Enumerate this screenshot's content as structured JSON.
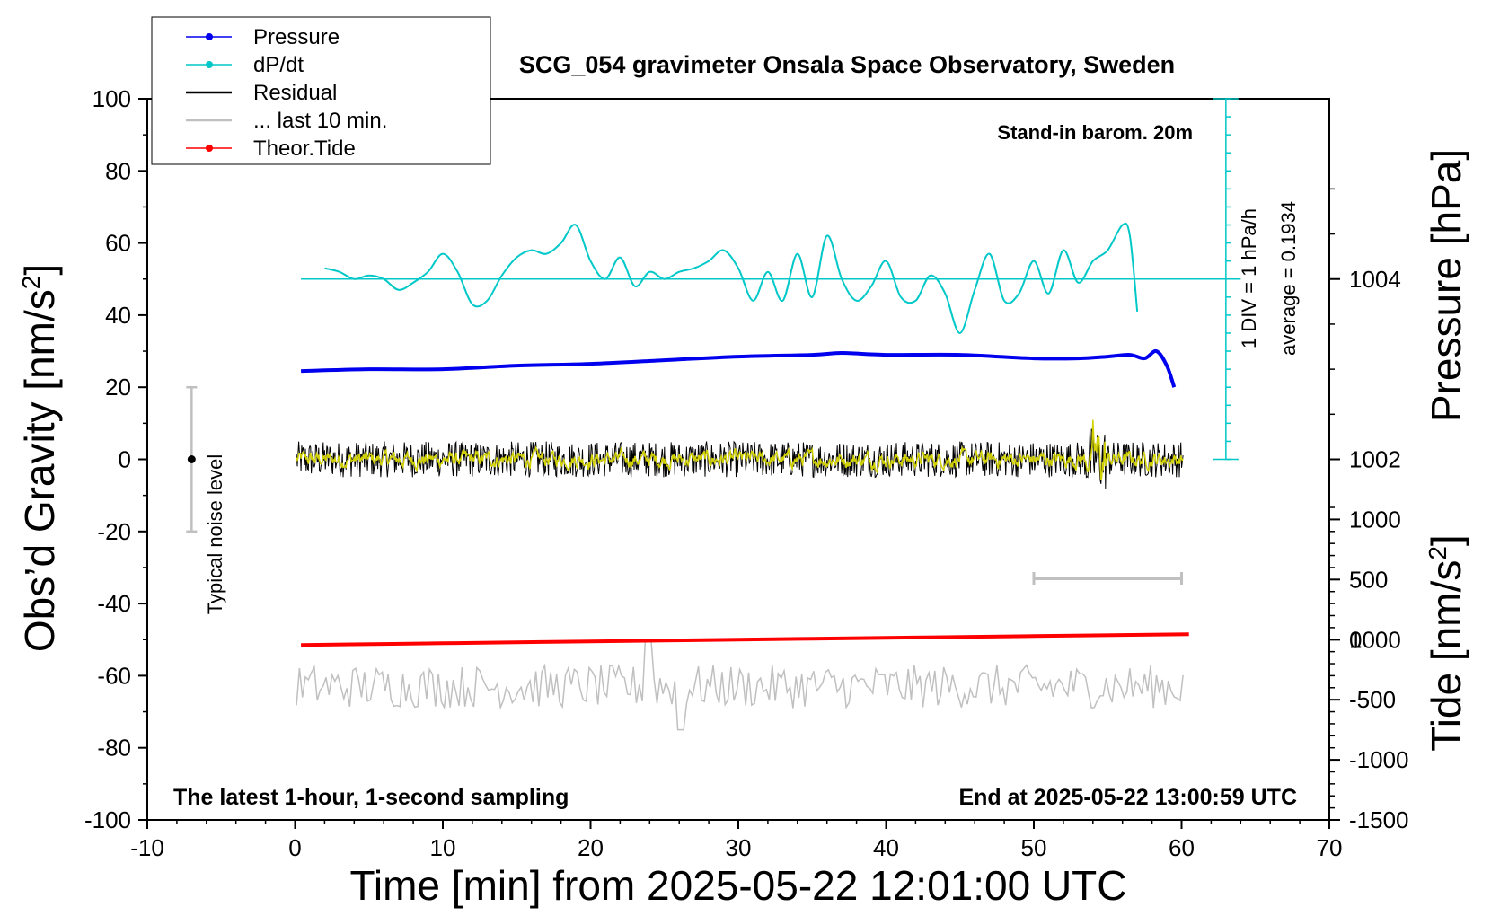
{
  "chart_data": {
    "type": "line",
    "title": "SCG_054 gravimeter Onsala Space Observatory, Sweden",
    "xlabel": "Time [min] from 2025-05-22 12:01:00 UTC",
    "ylabel_prefix": "Obs’d Gravity [nm/s",
    "ylabel_sup": "2",
    "ylabel_suffix": "]",
    "y2label": "Pressure [hPa]",
    "y3label_prefix": "Tide [nm/s",
    "y3label_sup": "2",
    "y3label_suffix": "]",
    "xlim": [
      -10,
      70
    ],
    "ylim": [
      -100,
      100
    ],
    "xticks": [
      -10,
      0,
      10,
      20,
      30,
      40,
      50,
      60,
      70
    ],
    "yticks": [
      -100,
      -80,
      -60,
      -40,
      -20,
      0,
      20,
      40,
      60,
      80,
      100
    ],
    "pressure_axis": {
      "ticks": [
        1000,
        1002,
        1004
      ],
      "zero_gravity": 1002,
      "hpa_per_gravity_unit": 0.04
    },
    "tide_axis": {
      "ticks": [
        -1500,
        -1000,
        -500,
        0,
        500,
        1000
      ],
      "tide_per_gravity_unit": 30
    },
    "series": [
      {
        "name": "Pressure",
        "color": "#0000ee",
        "x": [
          0.4,
          5,
          10,
          15,
          20,
          25,
          30,
          35,
          37,
          40,
          45,
          50,
          53,
          55,
          56.5,
          57.5,
          58.3,
          59,
          59.5
        ],
        "y": [
          1002.98,
          1003.0,
          1003.0,
          1003.04,
          1003.06,
          1003.1,
          1003.14,
          1003.16,
          1003.18,
          1003.16,
          1003.16,
          1003.12,
          1003.12,
          1003.14,
          1003.16,
          1003.12,
          1003.2,
          1003.04,
          1002.8
        ]
      },
      {
        "name": "dP/dt",
        "color": "#00c8c8",
        "x": [
          2,
          3,
          4,
          5,
          6,
          7,
          8,
          9,
          10,
          11,
          12,
          13,
          14,
          15,
          16,
          17,
          18,
          19,
          20,
          21,
          22,
          23,
          24,
          25,
          26,
          27,
          28,
          29,
          30,
          31,
          32,
          33,
          34,
          35,
          36,
          37,
          38,
          39,
          40,
          41,
          42,
          43,
          44,
          45,
          46,
          47,
          48,
          49,
          50,
          51,
          52,
          53,
          54,
          55,
          56,
          56.5,
          57
        ],
        "y": [
          53,
          52,
          50,
          51,
          50,
          47,
          49,
          52,
          57,
          52,
          43,
          44,
          51,
          56,
          58,
          57,
          60,
          65,
          55,
          50,
          56,
          48,
          52,
          50,
          52,
          53,
          55,
          58,
          53,
          44,
          52,
          44,
          57,
          45,
          62,
          50,
          44,
          48,
          55,
          45,
          44,
          51,
          46,
          35,
          47,
          57,
          44,
          46,
          55,
          46,
          58,
          49,
          55,
          58,
          65,
          62,
          41
        ]
      },
      {
        "name": "Residual",
        "color": "#000000"
      },
      {
        "name": "... last 10 min.",
        "color": "#c0c0c0"
      },
      {
        "name": "Theor.Tide",
        "color": "#ff0000",
        "x": [
          0.4,
          10,
          20,
          30,
          40,
          50,
          60.5
        ],
        "y": [
          -51.5,
          -51.0,
          -50.5,
          -50.0,
          -49.5,
          -49.0,
          -48.5
        ]
      }
    ],
    "dpdt_reference_line": 50,
    "dpdt_scale": {
      "top": 100,
      "bottom": 0,
      "x": 63
    },
    "legend": [
      "Pressure",
      "dP/dt",
      "Residual",
      "... last 10 min.",
      "Theor.Tide"
    ],
    "legend_position": "top-left",
    "noise_bar": {
      "x": -7,
      "center": 0,
      "low": -20,
      "high": 20,
      "label": "Typical noise level"
    },
    "last10_bar": {
      "x_start": 50,
      "x_end": 60,
      "y": -33
    },
    "annotations": {
      "stand_in": "Stand-in barom. 20m",
      "latest": "The latest 1-hour, 1-second sampling",
      "end_at": "End at 2025-05-22 13:00:59 UTC",
      "div_label": "1 DIV = 1 hPa/h",
      "average_label": "average = 0.1934"
    }
  }
}
